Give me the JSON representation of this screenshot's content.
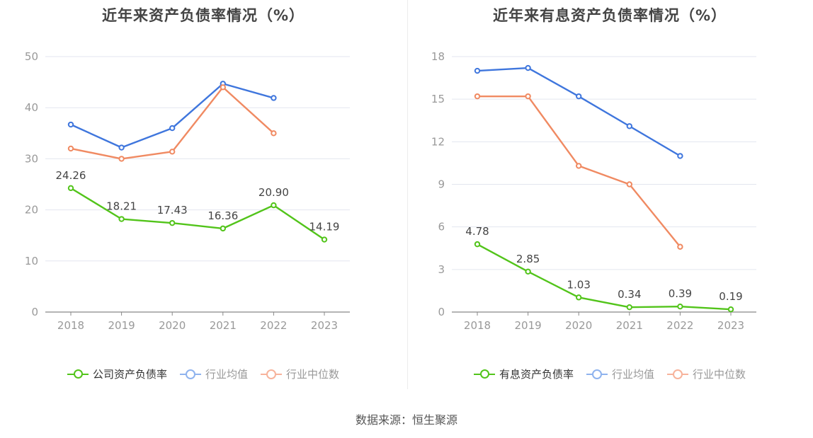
{
  "source": "数据来源：恒生聚源",
  "charts": [
    {
      "title": "近年来资产负债率情况（%）",
      "legend": [
        {
          "label": "公司资产负债率",
          "color": "#52c41a",
          "muted": false
        },
        {
          "label": "行业均值",
          "color": "#8fb3ee",
          "muted": true
        },
        {
          "label": "行业中位数",
          "color": "#f7b39b",
          "muted": true
        }
      ]
    },
    {
      "title": "近年来有息资产负债率情况（%）",
      "legend": [
        {
          "label": "有息资产负债率",
          "color": "#52c41a",
          "muted": false
        },
        {
          "label": "行业均值",
          "color": "#8fb3ee",
          "muted": true
        },
        {
          "label": "行业中位数",
          "color": "#f7b39b",
          "muted": true
        }
      ]
    }
  ],
  "chart_data": [
    {
      "type": "line",
      "title": "近年来资产负债率情况（%）",
      "categories": [
        "2018",
        "2019",
        "2020",
        "2021",
        "2022",
        "2023"
      ],
      "ylim": [
        0,
        50
      ],
      "yticks": [
        0,
        10,
        20,
        30,
        40,
        50
      ],
      "grid": true,
      "legend_position": "bottom",
      "series": [
        {
          "name": "公司资产负债率",
          "color": "#52c41a",
          "labels": true,
          "values": [
            24.26,
            18.21,
            17.43,
            16.36,
            20.9,
            14.19
          ],
          "value_labels": [
            "24.26",
            "18.21",
            "17.43",
            "16.36",
            "20.90",
            "14.19"
          ]
        },
        {
          "name": "行业均值",
          "color": "#3f76dd",
          "labels": false,
          "values": [
            36.7,
            32.2,
            36.0,
            44.7,
            41.9,
            null
          ]
        },
        {
          "name": "行业中位数",
          "color": "#f08a62",
          "labels": false,
          "values": [
            32.0,
            30.0,
            31.4,
            44.0,
            35.0,
            null
          ]
        }
      ]
    },
    {
      "type": "line",
      "title": "近年来有息资产负债率情况（%）",
      "categories": [
        "2018",
        "2019",
        "2020",
        "2021",
        "2022",
        "2023"
      ],
      "ylim": [
        0,
        18
      ],
      "yticks": [
        0,
        3,
        6,
        9,
        12,
        15,
        18
      ],
      "grid": true,
      "legend_position": "bottom",
      "series": [
        {
          "name": "有息资产负债率",
          "color": "#52c41a",
          "labels": true,
          "values": [
            4.78,
            2.85,
            1.03,
            0.34,
            0.39,
            0.19
          ],
          "value_labels": [
            "4.78",
            "2.85",
            "1.03",
            "0.34",
            "0.39",
            "0.19"
          ]
        },
        {
          "name": "行业均值",
          "color": "#3f76dd",
          "labels": false,
          "values": [
            17.0,
            17.2,
            15.2,
            13.1,
            11.0,
            null
          ]
        },
        {
          "name": "行业中位数",
          "color": "#f08a62",
          "labels": false,
          "values": [
            15.2,
            15.2,
            10.3,
            9.0,
            4.6,
            null
          ]
        }
      ]
    }
  ]
}
